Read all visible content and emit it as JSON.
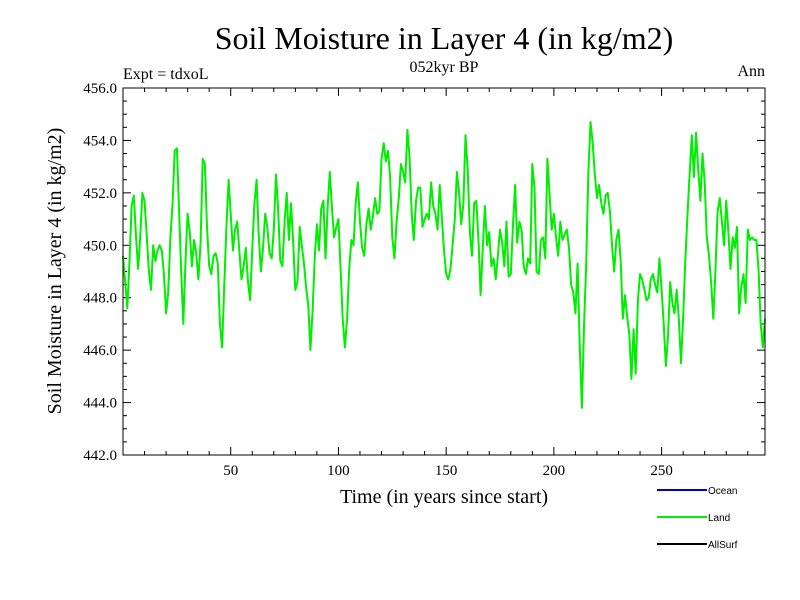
{
  "chart_data": {
    "type": "line",
    "title": "Soil Moisture in Layer 4 (in kg/m2)",
    "subtitle": "052kyr BP",
    "top_left_label": "Expt = tdxoL",
    "top_right_label": "Ann",
    "xlabel": "Time (in years since start)",
    "ylabel": "Soil Moisture in Layer 4 (in kg/m2)",
    "xlim": [
      0,
      298
    ],
    "ylim": [
      442.0,
      456.0
    ],
    "x_ticks": [
      50,
      100,
      150,
      200,
      250
    ],
    "x_tick_labels": [
      "50",
      "100",
      "150",
      "200",
      "250"
    ],
    "y_ticks": [
      442.0,
      444.0,
      446.0,
      448.0,
      450.0,
      452.0,
      454.0,
      456.0
    ],
    "y_tick_labels": [
      "442.0",
      "444.0",
      "446.0",
      "448.0",
      "450.0",
      "452.0",
      "454.0",
      "456.0"
    ],
    "grid": false,
    "legend_position": "bottom-right, below plot",
    "legend": [
      {
        "name": "Ocean",
        "color": "#0000cc"
      },
      {
        "name": "Land",
        "color": "#00ee00"
      },
      {
        "name": "AllSurf",
        "color": "#000000"
      }
    ],
    "series": [
      {
        "name": "Land",
        "color": "#00ee00",
        "points": [
          [
            0,
            449.6
          ],
          [
            1,
            448.6
          ],
          [
            2,
            447.6
          ],
          [
            3,
            449.4
          ],
          [
            4,
            451.5
          ],
          [
            5,
            451.9
          ],
          [
            6,
            450.4
          ],
          [
            7,
            449.1
          ],
          [
            8,
            450.3
          ],
          [
            9,
            452.0
          ],
          [
            10,
            451.7
          ],
          [
            11,
            450.4
          ],
          [
            12,
            449.0
          ],
          [
            13,
            448.3
          ],
          [
            14,
            450.0
          ],
          [
            15,
            449.4
          ],
          [
            16,
            449.8
          ],
          [
            17,
            450.0
          ],
          [
            18,
            449.8
          ],
          [
            19,
            448.9
          ],
          [
            20,
            447.4
          ],
          [
            21,
            448.2
          ],
          [
            22,
            450.3
          ],
          [
            23,
            451.6
          ],
          [
            24,
            453.6
          ],
          [
            25,
            453.7
          ],
          [
            26,
            451.4
          ],
          [
            27,
            449.0
          ],
          [
            28,
            447.0
          ],
          [
            29,
            449.4
          ],
          [
            30,
            451.2
          ],
          [
            31,
            450.5
          ],
          [
            32,
            449.2
          ],
          [
            33,
            450.2
          ],
          [
            34,
            449.7
          ],
          [
            35,
            448.7
          ],
          [
            36,
            450.1
          ],
          [
            37,
            453.3
          ],
          [
            38,
            453.1
          ],
          [
            39,
            450.7
          ],
          [
            40,
            449.2
          ],
          [
            41,
            448.9
          ],
          [
            42,
            449.6
          ],
          [
            43,
            449.7
          ],
          [
            44,
            449.3
          ],
          [
            45,
            447.0
          ],
          [
            46,
            446.1
          ],
          [
            47,
            448.5
          ],
          [
            48,
            450.7
          ],
          [
            49,
            452.5
          ],
          [
            50,
            451.2
          ],
          [
            51,
            449.8
          ],
          [
            52,
            450.6
          ],
          [
            53,
            450.9
          ],
          [
            54,
            449.8
          ],
          [
            55,
            448.7
          ],
          [
            56,
            449.2
          ],
          [
            57,
            449.9
          ],
          [
            58,
            448.6
          ],
          [
            59,
            447.9
          ],
          [
            60,
            449.9
          ],
          [
            61,
            451.6
          ],
          [
            62,
            452.5
          ],
          [
            63,
            450.4
          ],
          [
            64,
            449.0
          ],
          [
            65,
            449.9
          ],
          [
            66,
            451.2
          ],
          [
            67,
            450.7
          ],
          [
            68,
            449.7
          ],
          [
            69,
            449.5
          ],
          [
            70,
            450.6
          ],
          [
            71,
            452.7
          ],
          [
            72,
            451.4
          ],
          [
            73,
            449.4
          ],
          [
            74,
            449.2
          ],
          [
            75,
            450.9
          ],
          [
            76,
            452.0
          ],
          [
            77,
            450.2
          ],
          [
            78,
            451.6
          ],
          [
            79,
            450.1
          ],
          [
            80,
            448.3
          ],
          [
            81,
            448.6
          ],
          [
            82,
            450.7
          ],
          [
            83,
            450.0
          ],
          [
            84,
            449.3
          ],
          [
            85,
            448.4
          ],
          [
            86,
            447.7
          ],
          [
            87,
            446.0
          ],
          [
            88,
            447.5
          ],
          [
            89,
            449.5
          ],
          [
            90,
            450.8
          ],
          [
            91,
            449.8
          ],
          [
            92,
            451.4
          ],
          [
            93,
            451.7
          ],
          [
            94,
            449.5
          ],
          [
            95,
            451.5
          ],
          [
            96,
            452.8
          ],
          [
            97,
            451.4
          ],
          [
            98,
            450.3
          ],
          [
            99,
            450.7
          ],
          [
            100,
            451.0
          ],
          [
            101,
            449.1
          ],
          [
            102,
            447.2
          ],
          [
            103,
            446.1
          ],
          [
            104,
            447.2
          ],
          [
            105,
            449.1
          ],
          [
            106,
            450.2
          ],
          [
            107,
            450.0
          ],
          [
            108,
            451.6
          ],
          [
            109,
            452.4
          ],
          [
            110,
            450.9
          ],
          [
            111,
            449.9
          ],
          [
            112,
            449.6
          ],
          [
            113,
            450.8
          ],
          [
            114,
            451.4
          ],
          [
            115,
            450.6
          ],
          [
            116,
            451.1
          ],
          [
            117,
            451.8
          ],
          [
            118,
            451.2
          ],
          [
            119,
            451.3
          ],
          [
            120,
            453.3
          ],
          [
            121,
            453.9
          ],
          [
            122,
            453.2
          ],
          [
            123,
            453.6
          ],
          [
            124,
            452.6
          ],
          [
            125,
            450.3
          ],
          [
            126,
            449.5
          ],
          [
            127,
            450.9
          ],
          [
            128,
            451.8
          ],
          [
            129,
            453.1
          ],
          [
            130,
            452.8
          ],
          [
            131,
            452.4
          ],
          [
            132,
            454.4
          ],
          [
            133,
            453.4
          ],
          [
            134,
            451.2
          ],
          [
            135,
            450.2
          ],
          [
            136,
            451.7
          ],
          [
            137,
            452.2
          ],
          [
            138,
            452.2
          ],
          [
            139,
            450.7
          ],
          [
            140,
            451.0
          ],
          [
            141,
            451.2
          ],
          [
            142,
            451.0
          ],
          [
            143,
            452.4
          ],
          [
            144,
            451.5
          ],
          [
            145,
            451.2
          ],
          [
            146,
            450.6
          ],
          [
            147,
            452.3
          ],
          [
            148,
            451.1
          ],
          [
            149,
            449.8
          ],
          [
            150,
            448.9
          ],
          [
            151,
            448.7
          ],
          [
            152,
            449.1
          ],
          [
            153,
            450.0
          ],
          [
            154,
            451.0
          ],
          [
            155,
            452.8
          ],
          [
            156,
            452.0
          ],
          [
            157,
            450.8
          ],
          [
            158,
            451.6
          ],
          [
            159,
            454.2
          ],
          [
            160,
            452.9
          ],
          [
            161,
            450.5
          ],
          [
            162,
            449.6
          ],
          [
            163,
            451.6
          ],
          [
            164,
            451.7
          ],
          [
            165,
            450.2
          ],
          [
            166,
            448.1
          ],
          [
            167,
            449.9
          ],
          [
            168,
            451.5
          ],
          [
            169,
            450.0
          ],
          [
            170,
            450.5
          ],
          [
            171,
            449.2
          ],
          [
            172,
            449.5
          ],
          [
            173,
            448.7
          ],
          [
            174,
            449.6
          ],
          [
            175,
            450.6
          ],
          [
            176,
            450.1
          ],
          [
            177,
            449.2
          ],
          [
            178,
            450.9
          ],
          [
            179,
            448.8
          ],
          [
            180,
            448.9
          ],
          [
            181,
            450.7
          ],
          [
            182,
            452.3
          ],
          [
            183,
            450.1
          ],
          [
            184,
            450.9
          ],
          [
            185,
            450.6
          ],
          [
            186,
            449.2
          ],
          [
            187,
            448.9
          ],
          [
            188,
            449.5
          ],
          [
            189,
            449.3
          ],
          [
            190,
            453.1
          ],
          [
            191,
            452.2
          ],
          [
            192,
            449.0
          ],
          [
            193,
            448.9
          ],
          [
            194,
            450.2
          ],
          [
            195,
            450.3
          ],
          [
            196,
            449.5
          ],
          [
            197,
            453.3
          ],
          [
            198,
            451.9
          ],
          [
            199,
            450.6
          ],
          [
            200,
            451.2
          ],
          [
            201,
            450.3
          ],
          [
            202,
            449.6
          ],
          [
            203,
            450.9
          ],
          [
            204,
            450.2
          ],
          [
            205,
            450.4
          ],
          [
            206,
            450.6
          ],
          [
            207,
            449.9
          ],
          [
            208,
            448.5
          ],
          [
            209,
            448.2
          ],
          [
            210,
            447.4
          ],
          [
            211,
            449.3
          ],
          [
            212,
            446.2
          ],
          [
            213,
            443.8
          ],
          [
            214,
            446.9
          ],
          [
            215,
            449.3
          ],
          [
            216,
            452.7
          ],
          [
            217,
            454.7
          ],
          [
            218,
            453.9
          ],
          [
            219,
            452.7
          ],
          [
            220,
            451.8
          ],
          [
            221,
            452.3
          ],
          [
            222,
            451.6
          ],
          [
            223,
            451.2
          ],
          [
            224,
            451.9
          ],
          [
            225,
            452.0
          ],
          [
            226,
            451.3
          ],
          [
            227,
            450.0
          ],
          [
            228,
            449.0
          ],
          [
            229,
            450.2
          ],
          [
            230,
            450.6
          ],
          [
            231,
            449.4
          ],
          [
            232,
            447.2
          ],
          [
            233,
            448.1
          ],
          [
            234,
            447.3
          ],
          [
            235,
            446.6
          ],
          [
            236,
            444.9
          ],
          [
            237,
            446.8
          ],
          [
            238,
            445.1
          ],
          [
            239,
            447.9
          ],
          [
            240,
            448.9
          ],
          [
            241,
            448.7
          ],
          [
            242,
            448.3
          ],
          [
            243,
            447.9
          ],
          [
            244,
            448.0
          ],
          [
            245,
            448.7
          ],
          [
            246,
            448.9
          ],
          [
            247,
            448.5
          ],
          [
            248,
            448.2
          ],
          [
            249,
            449.5
          ],
          [
            250,
            448.3
          ],
          [
            251,
            447.0
          ],
          [
            252,
            445.4
          ],
          [
            253,
            446.6
          ],
          [
            254,
            448.6
          ],
          [
            255,
            447.8
          ],
          [
            256,
            447.4
          ],
          [
            257,
            448.3
          ],
          [
            258,
            447.2
          ],
          [
            259,
            445.5
          ],
          [
            260,
            447.2
          ],
          [
            261,
            449.4
          ],
          [
            262,
            451.1
          ],
          [
            263,
            452.7
          ],
          [
            264,
            454.2
          ],
          [
            265,
            452.6
          ],
          [
            266,
            454.3
          ],
          [
            267,
            452.9
          ],
          [
            268,
            451.7
          ],
          [
            269,
            453.5
          ],
          [
            270,
            452.4
          ],
          [
            271,
            450.3
          ],
          [
            272,
            449.6
          ],
          [
            273,
            448.6
          ],
          [
            274,
            447.2
          ],
          [
            275,
            449.0
          ],
          [
            276,
            451.3
          ],
          [
            277,
            451.8
          ],
          [
            278,
            450.9
          ],
          [
            279,
            450.0
          ],
          [
            280,
            451.7
          ],
          [
            281,
            450.5
          ],
          [
            282,
            449.1
          ],
          [
            283,
            450.3
          ],
          [
            284,
            449.9
          ],
          [
            285,
            450.7
          ],
          [
            286,
            447.4
          ],
          [
            287,
            448.4
          ],
          [
            288,
            448.9
          ],
          [
            289,
            447.8
          ],
          [
            290,
            450.6
          ],
          [
            291,
            450.2
          ],
          [
            292,
            450.3
          ],
          [
            293,
            450.2
          ],
          [
            294,
            450.2
          ],
          [
            295,
            449.1
          ],
          [
            296,
            447.0
          ],
          [
            297,
            446.1
          ],
          [
            298,
            447.2
          ]
        ]
      }
    ]
  }
}
